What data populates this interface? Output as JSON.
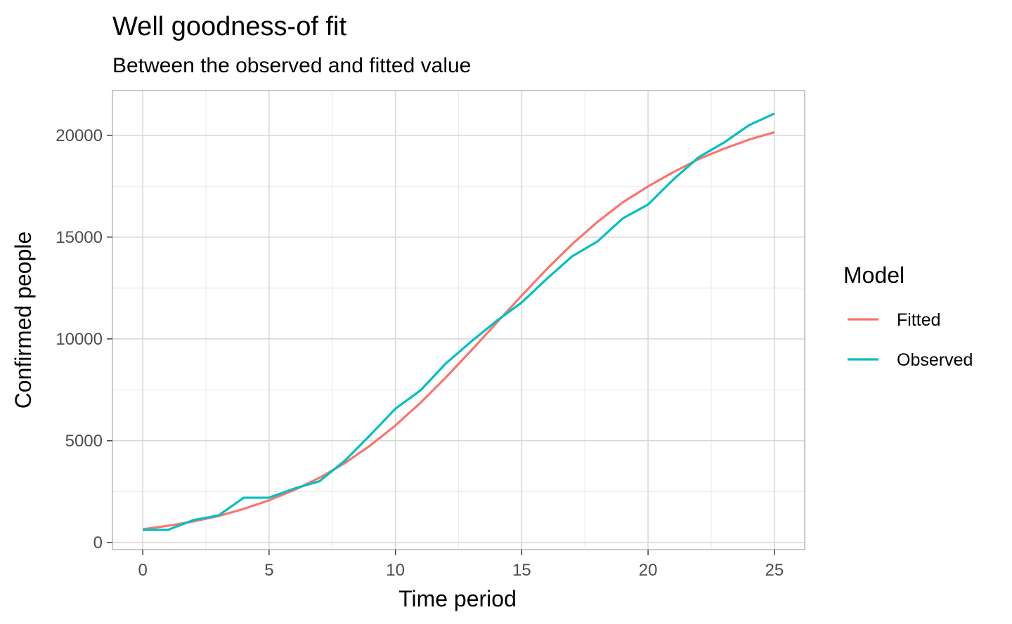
{
  "chart_data": {
    "type": "line",
    "title": "Well goodness-of fit",
    "subtitle": "Between the observed and fitted value",
    "xlabel": "Time period",
    "ylabel": "Confirmed people",
    "xlim": [
      -1.2,
      26.2
    ],
    "ylim": [
      -350,
      22200
    ],
    "xticks": [
      0,
      5,
      10,
      15,
      20,
      25
    ],
    "xtick_labels": [
      "0",
      "5",
      "10",
      "15",
      "20",
      "25"
    ],
    "yticks": [
      0,
      5000,
      10000,
      15000,
      20000
    ],
    "ytick_labels": [
      "0",
      "5000",
      "10000",
      "15000",
      "20000"
    ],
    "grid": true,
    "legend": {
      "title": "Model",
      "placement": "right"
    },
    "x": [
      0,
      1,
      2,
      3,
      4,
      5,
      6,
      7,
      8,
      9,
      10,
      11,
      12,
      13,
      14,
      15,
      16,
      17,
      18,
      19,
      20,
      21,
      22,
      23,
      24,
      25
    ],
    "series": [
      {
        "name": "Fitted",
        "color": "#F8766D",
        "values": [
          650,
          820,
          1030,
          1300,
          1650,
          2070,
          2580,
          3180,
          3900,
          4760,
          5750,
          6870,
          8110,
          9430,
          10780,
          12130,
          13440,
          14660,
          15750,
          16710,
          17490,
          18190,
          18830,
          19340,
          19790,
          20150
        ]
      },
      {
        "name": "Observed",
        "color": "#00BFC4",
        "values": [
          620,
          620,
          1100,
          1330,
          2200,
          2200,
          2650,
          3010,
          4020,
          5270,
          6570,
          7480,
          8800,
          9870,
          10880,
          11790,
          12960,
          14060,
          14790,
          15920,
          16600,
          17830,
          18920,
          19640,
          20500,
          21070
        ]
      }
    ]
  }
}
